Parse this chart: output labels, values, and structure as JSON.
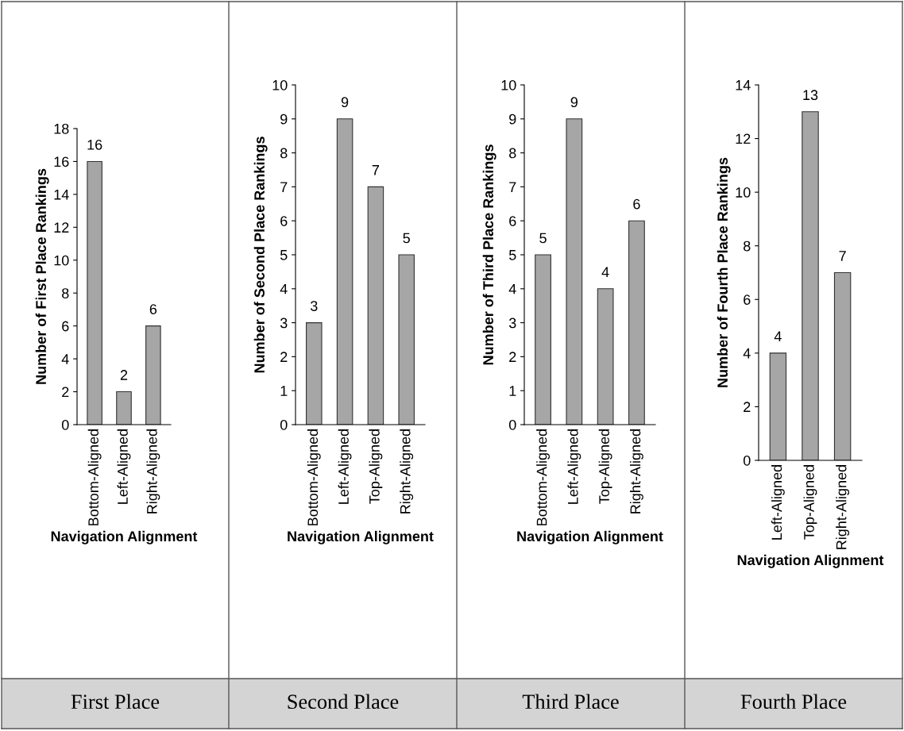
{
  "chart_data": [
    {
      "type": "bar",
      "categories": [
        "Bottom-Aligned",
        "Left-Aligned",
        "Right-Aligned"
      ],
      "values": [
        16,
        2,
        6
      ],
      "color": "#a6a6a6",
      "xlabel": "Navigation Alignment",
      "ylabel": "Number of First Place Rankings",
      "ylim": [
        0,
        18
      ],
      "yticks": [
        0,
        2,
        4,
        6,
        8,
        10,
        12,
        14,
        16,
        18
      ],
      "data_labels": true,
      "grid": false,
      "legend": false,
      "annotations": [
        "First Place"
      ]
    },
    {
      "type": "bar",
      "categories": [
        "Bottom-Aligned",
        "Left-Aligned",
        "Top-Aligned",
        "Right-Aligned"
      ],
      "values": [
        3,
        9,
        7,
        5
      ],
      "color": "#a6a6a6",
      "xlabel": "Navigation Alignment",
      "ylabel": "Number of Second Place Rankings",
      "ylim": [
        0,
        10
      ],
      "yticks": [
        0,
        1,
        2,
        3,
        4,
        5,
        6,
        7,
        8,
        9,
        10
      ],
      "data_labels": true,
      "grid": false,
      "legend": false,
      "annotations": [
        "Second Place"
      ]
    },
    {
      "type": "bar",
      "categories": [
        "Bottom-Aligned",
        "Left-Aligned",
        "Top-Aligned",
        "Right-Aligned"
      ],
      "values": [
        5,
        9,
        4,
        6
      ],
      "color": "#a6a6a6",
      "xlabel": "Navigation Alignment",
      "ylabel": "Number of Third Place Rankings",
      "ylim": [
        0,
        10
      ],
      "yticks": [
        0,
        1,
        2,
        3,
        4,
        5,
        6,
        7,
        8,
        9,
        10
      ],
      "data_labels": true,
      "grid": false,
      "legend": false,
      "annotations": [
        "Third Place"
      ]
    },
    {
      "type": "bar",
      "categories": [
        "Left-Aligned",
        "Top-Aligned",
        "Right-Aligned"
      ],
      "values": [
        4,
        13,
        7
      ],
      "color": "#a6a6a6",
      "xlabel": "Navigation Alignment",
      "ylabel": "Number of Fourth Place Rankings",
      "ylim": [
        0,
        14
      ],
      "yticks": [
        0,
        2,
        4,
        6,
        8,
        10,
        12,
        14
      ],
      "data_labels": true,
      "grid": false,
      "legend": false,
      "annotations": [
        "Fourth Place"
      ]
    }
  ]
}
